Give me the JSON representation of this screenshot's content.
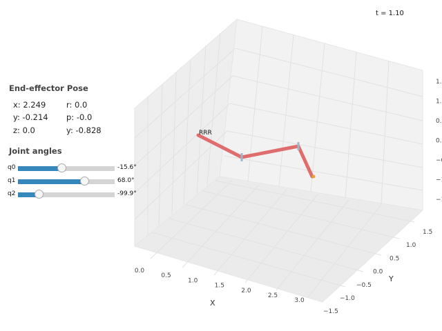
{
  "time_label": "t = 1.10",
  "pose": {
    "title": "End-effector Pose",
    "x": "x: 2.249",
    "y": "y: -0.214",
    "z": "z: 0.0",
    "r": "r: 0.0",
    "p": "p: -0.0",
    "yaw": "y: -0.828"
  },
  "joints": {
    "title": "Joint angles",
    "sliders": [
      {
        "label": "q0",
        "value_text": "-15.6°",
        "fraction": 0.46
      },
      {
        "label": "q1",
        "value_text": "68.0°",
        "fraction": 0.69
      },
      {
        "label": "q2",
        "value_text": "-99.9°",
        "fraction": 0.22
      }
    ]
  },
  "plot": {
    "robot_label": "RRR",
    "x_axis": {
      "title": "X",
      "ticks": [
        "0.0",
        "0.5",
        "1.0",
        "1.5",
        "2.0",
        "2.5",
        "3.0"
      ]
    },
    "y_axis": {
      "title": "Y",
      "ticks": [
        "1.5",
        "1.0",
        "0.5",
        "0.0",
        "−0.5",
        "−1.0",
        "−1.5"
      ]
    },
    "z_axis": {
      "ticks": [
        "1.",
        "1.",
        "0.",
        "0.",
        "−0",
        "−1",
        "−1"
      ]
    },
    "colors": {
      "link": "#e06d6d",
      "joint": "#9fb6cf",
      "end_effector": "#e8a23a",
      "pane": "#f2f2f2",
      "grid": "#e0e0e0"
    }
  }
}
